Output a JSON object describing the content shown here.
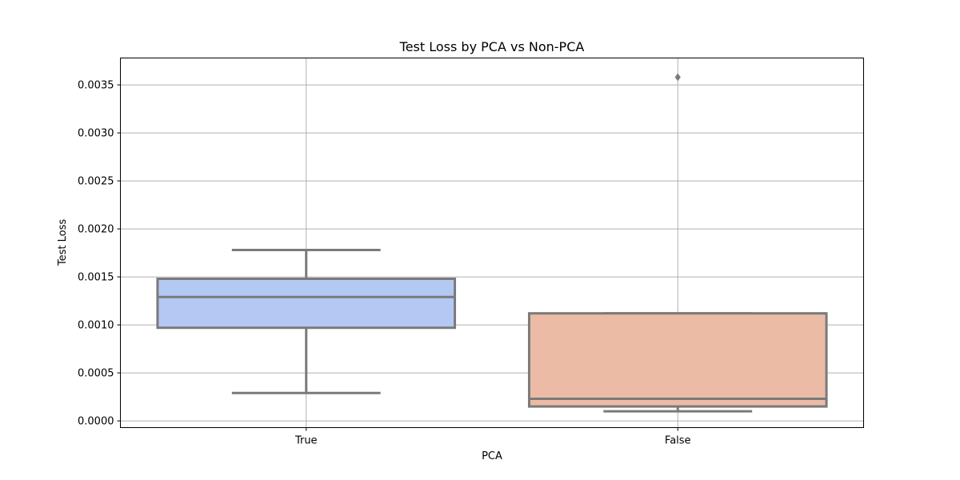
{
  "chart_data": {
    "type": "box",
    "title": "Test Loss by PCA vs Non-PCA",
    "xlabel": "PCA",
    "ylabel": "Test Loss",
    "categories": [
      "True",
      "False"
    ],
    "ylim": [
      -7e-05,
      0.00378
    ],
    "yticks": [
      0.0,
      0.0005,
      0.001,
      0.0015,
      0.002,
      0.0025,
      0.003,
      0.0035
    ],
    "ytick_labels": [
      "0.0000",
      "0.0005",
      "0.0010",
      "0.0015",
      "0.0020",
      "0.0025",
      "0.0030",
      "0.0035"
    ],
    "grid": true,
    "boxes": [
      {
        "category": "True",
        "whisker_low": 0.00029,
        "q1": 0.00097,
        "median": 0.00129,
        "q3": 0.00148,
        "whisker_high": 0.00178,
        "outliers": [],
        "color": "#b4c8f4"
      },
      {
        "category": "False",
        "whisker_low": 0.0001,
        "q1": 0.00015,
        "median": 0.00023,
        "q3": 0.00112,
        "whisker_high": 0.00112,
        "outliers": [
          0.00358
        ],
        "color": "#ebbba5"
      }
    ],
    "line_color": "#7a7a7a",
    "grid_color": "#b0b0b0"
  }
}
